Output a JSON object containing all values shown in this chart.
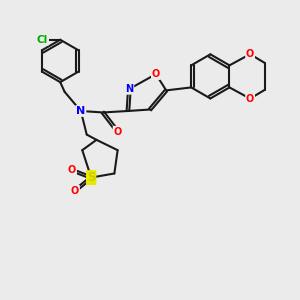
{
  "background_color": "#ebebeb",
  "bond_color": "#1a1a1a",
  "atom_colors": {
    "N": "#0000ff",
    "O": "#ff0000",
    "S": "#cccc00",
    "Cl": "#00aa00",
    "C": "#1a1a1a"
  },
  "figsize": [
    3.0,
    3.0
  ],
  "dpi": 100
}
